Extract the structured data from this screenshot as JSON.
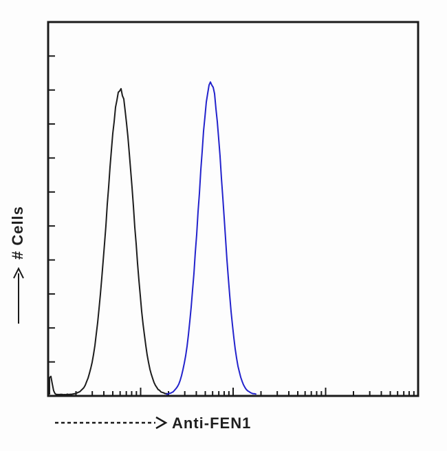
{
  "chart_data": {
    "type": "line",
    "subtype": "flow-cytometry-histogram",
    "title": "",
    "xlabel": "Anti-FEN1",
    "ylabel": "# Cells",
    "x_scale": "log",
    "x_decades": 4,
    "y_tick_count": 10,
    "axis_numeric_labels": "none",
    "legend_position": "none",
    "grid": false,
    "plot_border_color": "#1a1a1a",
    "background_color": "#fdfdfd",
    "series": [
      {
        "key": "black-curve",
        "name": "black peak (left, unstained control)",
        "color": "#1c1c1c",
        "peak_x_fraction": 0.195,
        "sigma_fraction": 0.036,
        "peak_height_fraction": 0.815,
        "extra_components": [
          {
            "peak_x_fraction": 0.006,
            "sigma_fraction": 0.005,
            "peak_height_fraction": 0.05
          }
        ]
      },
      {
        "key": "blue-curve",
        "name": "blue peak (right, Anti-FEN1 stained)",
        "color": "#2222cc",
        "peak_x_fraction": 0.44,
        "sigma_fraction": 0.0335,
        "peak_height_fraction": 0.835,
        "extra_components": []
      }
    ]
  }
}
